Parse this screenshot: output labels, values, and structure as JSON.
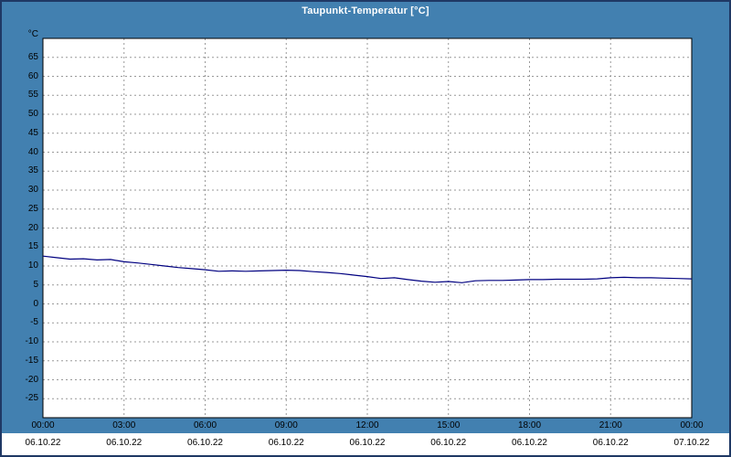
{
  "window": {
    "title": "Taupunkt-Temperatur [°C]"
  },
  "colors": {
    "background": "#4280B0",
    "window_border": "#1F3864",
    "plot_background": "#FFFFFF",
    "plot_border": "#000000",
    "grid": "#999999",
    "line": "#000080",
    "title_text": "#FFFFFF",
    "axis_text": "#000000",
    "footer_background": "#FFFFFF"
  },
  "chart_data": {
    "type": "line",
    "title": "Taupunkt-Temperatur [°C]",
    "xlabel": "",
    "ylabel": "°C",
    "grid": true,
    "legend": "none",
    "ylim": [
      -30,
      70
    ],
    "y_ticks": [
      65,
      60,
      55,
      50,
      45,
      40,
      35,
      30,
      25,
      20,
      15,
      10,
      5,
      0,
      -5,
      -10,
      -15,
      -20,
      -25
    ],
    "x_range": [
      0,
      24
    ],
    "x_tick_hours": [
      0,
      3,
      6,
      9,
      12,
      15,
      18,
      21,
      24
    ],
    "x_tick_labels": [
      "00:00",
      "03:00",
      "06:00",
      "09:00",
      "12:00",
      "15:00",
      "18:00",
      "21:00",
      "00:00"
    ],
    "x_date_labels": [
      "06.10.22",
      "06.10.22",
      "06.10.22",
      "06.10.22",
      "06.10.22",
      "06.10.22",
      "06.10.22",
      "06.10.22",
      "07.10.22"
    ],
    "series": [
      {
        "name": "Taupunkt-Temperatur",
        "x": [
          0,
          0.5,
          1,
          1.5,
          2,
          2.5,
          3,
          3.5,
          4,
          4.5,
          5,
          5.5,
          6,
          6.5,
          7,
          7.5,
          8,
          8.5,
          9,
          9.5,
          10,
          10.5,
          11,
          11.5,
          12,
          12.5,
          13,
          13.5,
          14,
          14.5,
          15,
          15.5,
          16,
          16.5,
          17,
          17.5,
          18,
          18.5,
          19,
          19.5,
          20,
          20.5,
          21,
          21.5,
          22,
          22.5,
          23,
          23.5,
          24
        ],
        "values": [
          12.6,
          12.2,
          11.8,
          11.9,
          11.6,
          11.7,
          11.1,
          10.8,
          10.4,
          10.0,
          9.6,
          9.3,
          9.0,
          8.6,
          8.7,
          8.6,
          8.7,
          8.8,
          8.9,
          8.8,
          8.5,
          8.3,
          8.0,
          7.6,
          7.2,
          6.7,
          6.9,
          6.4,
          6.0,
          5.7,
          5.9,
          5.6,
          6.1,
          6.2,
          6.2,
          6.3,
          6.4,
          6.4,
          6.5,
          6.5,
          6.5,
          6.6,
          6.9,
          7.0,
          6.9,
          6.9,
          6.8,
          6.7,
          6.6
        ]
      }
    ]
  }
}
